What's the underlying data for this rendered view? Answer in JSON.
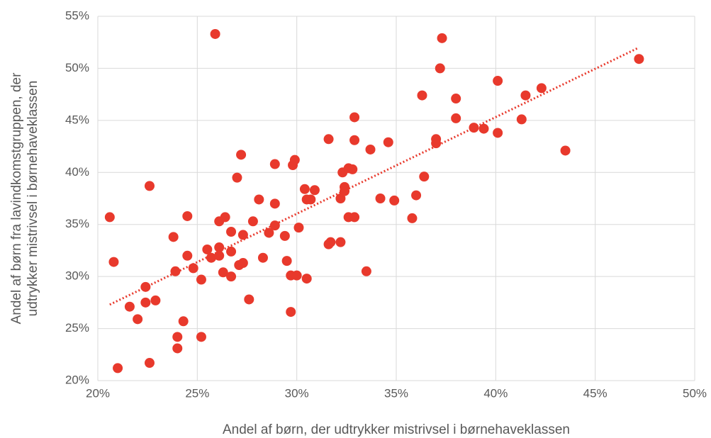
{
  "chart_data": {
    "type": "scatter",
    "xlabel": "Andel af børn, der udtrykker mistrivsel i børnehaveklassen",
    "ylabel": [
      "Andel af børn fra lavindkomstgruppen, der",
      "udtrykker mistrivsel i børnehaveklassen"
    ],
    "xlim": [
      20,
      50
    ],
    "ylim": [
      20,
      55
    ],
    "xticks": [
      {
        "value": 20,
        "label": "20%"
      },
      {
        "value": 25,
        "label": "25%"
      },
      {
        "value": 30,
        "label": "30%"
      },
      {
        "value": 35,
        "label": "35%"
      },
      {
        "value": 40,
        "label": "40%"
      },
      {
        "value": 45,
        "label": "45%"
      },
      {
        "value": 50,
        "label": "50%"
      }
    ],
    "yticks": [
      {
        "value": 20,
        "label": "20%"
      },
      {
        "value": 25,
        "label": "25%"
      },
      {
        "value": 30,
        "label": "30%"
      },
      {
        "value": 35,
        "label": "35%"
      },
      {
        "value": 40,
        "label": "40%"
      },
      {
        "value": 45,
        "label": "45%"
      },
      {
        "value": 50,
        "label": "50%"
      },
      {
        "value": 55,
        "label": "55%"
      }
    ],
    "grid": true,
    "color": "#e8392c",
    "x": [
      20.6,
      20.8,
      21.0,
      21.6,
      22.0,
      22.4,
      22.4,
      22.6,
      22.6,
      22.9,
      23.8,
      23.9,
      24.0,
      24.0,
      24.3,
      24.5,
      24.5,
      24.8,
      25.2,
      25.2,
      25.5,
      25.7,
      25.9,
      26.1,
      26.1,
      26.1,
      26.3,
      26.4,
      26.7,
      26.7,
      26.7,
      27.0,
      27.1,
      27.2,
      27.3,
      27.3,
      27.6,
      27.8,
      28.1,
      28.3,
      28.6,
      28.9,
      28.9,
      28.9,
      29.4,
      29.5,
      29.7,
      29.7,
      29.8,
      29.9,
      30.0,
      30.1,
      30.4,
      30.5,
      30.5,
      30.7,
      30.9,
      31.6,
      31.6,
      31.7,
      32.2,
      32.2,
      32.3,
      32.4,
      32.4,
      32.6,
      32.6,
      32.8,
      32.9,
      32.9,
      32.9,
      33.5,
      33.7,
      34.2,
      34.6,
      34.9,
      35.8,
      36.0,
      36.3,
      36.4,
      37.0,
      37.0,
      37.2,
      37.3,
      38.0,
      38.0,
      38.9,
      39.4,
      40.1,
      40.1,
      41.3,
      41.5,
      42.3,
      43.5,
      47.2
    ],
    "y": [
      35.7,
      31.4,
      21.2,
      27.1,
      25.9,
      29.0,
      27.5,
      38.7,
      21.7,
      27.7,
      33.8,
      30.5,
      24.2,
      23.1,
      25.7,
      35.8,
      32.0,
      30.8,
      24.2,
      29.7,
      32.6,
      31.8,
      53.3,
      35.3,
      32.8,
      32.0,
      30.4,
      35.7,
      32.4,
      34.3,
      30.0,
      39.5,
      31.1,
      41.7,
      34.0,
      31.3,
      27.8,
      35.3,
      37.4,
      31.8,
      34.2,
      40.8,
      37.0,
      34.9,
      33.9,
      31.5,
      30.1,
      26.6,
      40.7,
      41.2,
      30.1,
      34.7,
      38.4,
      37.4,
      29.8,
      37.4,
      38.3,
      33.1,
      43.2,
      33.3,
      33.3,
      37.5,
      40.0,
      38.6,
      38.2,
      40.4,
      35.7,
      40.3,
      35.7,
      45.3,
      43.1,
      30.5,
      42.2,
      37.5,
      42.9,
      37.3,
      35.6,
      37.8,
      47.4,
      39.6,
      42.8,
      43.2,
      50.0,
      52.9,
      47.1,
      45.2,
      44.3,
      44.2,
      48.8,
      43.8,
      45.1,
      47.4,
      48.1,
      42.1,
      50.9
    ],
    "trendline": {
      "x": [
        20.6,
        47.2
      ],
      "y": [
        27.3,
        52.0
      ]
    }
  }
}
